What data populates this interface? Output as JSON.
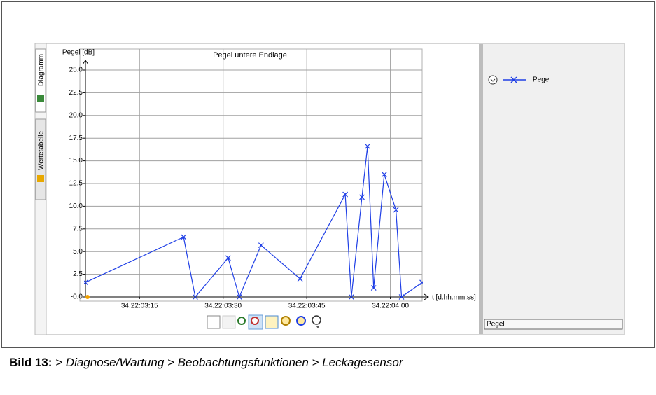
{
  "tabs": [
    "Diagramm",
    "Wertetabelle"
  ],
  "chart_data": {
    "type": "line",
    "title": "Pegel untere Endlage",
    "y_label": "Pegel [dB]",
    "x_label": "t [d.hh:mm:ss]",
    "x": [
      5.3,
      22.9,
      25.0,
      30.9,
      32.9,
      36.8,
      43.8,
      51.9,
      53.0,
      54.9,
      55.9,
      57.0,
      58.9,
      61.0,
      62.0,
      65.7
    ],
    "series": [
      {
        "name": "Pegel",
        "color": "#1f3fe6",
        "values": [
          1.6,
          6.6,
          0,
          4.3,
          0,
          5.7,
          2.0,
          11.3,
          0,
          11.0,
          16.6,
          1.0,
          13.5,
          9.6,
          0,
          1.6
        ]
      }
    ],
    "xlim": [
      5.3,
      65.7
    ],
    "xticks": [
      {
        "value": 15,
        "label": "34.22:03:15"
      },
      {
        "value": 30,
        "label": "34.22:03:30"
      },
      {
        "value": 45,
        "label": "34.22:03:45"
      },
      {
        "value": 60,
        "label": "34.22:04:00"
      }
    ],
    "ylim": [
      0,
      25
    ],
    "yticks": [
      {
        "value": 0,
        "label": "-0.0"
      },
      {
        "value": 2.5,
        "label": "2.5"
      },
      {
        "value": 5,
        "label": "5.0"
      },
      {
        "value": 7.5,
        "label": "7.5"
      },
      {
        "value": 10,
        "label": "10.0"
      },
      {
        "value": 12.5,
        "label": "12.5"
      },
      {
        "value": 15,
        "label": "15.0"
      },
      {
        "value": 17.5,
        "label": "17.5"
      },
      {
        "value": 20,
        "label": "20.0"
      },
      {
        "value": 22.5,
        "label": "22.5"
      },
      {
        "value": 25,
        "label": "25.0"
      }
    ],
    "grid": true,
    "legend": "right"
  },
  "side_panel": {
    "field": "Pegel"
  },
  "caption": {
    "label": "Bild 13:",
    "text": "> Diagnose/Wartung > Beobachtungsfunktionen > Leckagesensor"
  }
}
